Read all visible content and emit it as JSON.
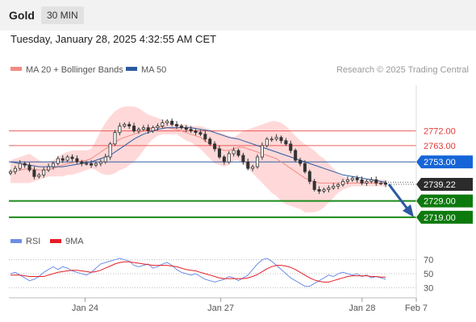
{
  "header": {
    "title": "Gold",
    "timeframe": "30 MIN"
  },
  "timestamp": "Tuesday, January 28, 2025 4:32:55 AM CET",
  "legend": {
    "items": [
      {
        "label": "MA 20 + Bollinger Bands",
        "color": "#f28b82"
      },
      {
        "label": "MA 50",
        "color": "#2c5aa0"
      }
    ],
    "credit": "Research © 2025 Trading Central"
  },
  "rsi_legend": {
    "items": [
      {
        "label": "RSI",
        "color": "#6c8ee6"
      },
      {
        "label": "9MA",
        "color": "#e41e26"
      }
    ]
  },
  "colors": {
    "bullish": "#333333",
    "bearish": "#333333",
    "band_fill": "#ffd9d9",
    "resistance": "#e53935",
    "pivot": "#2c5aa0",
    "support": "#1b8a1b",
    "last": "#333333"
  },
  "chart_data": [
    {
      "type": "line",
      "title": "",
      "x_ticks": [
        {
          "label": "Jan 24",
          "pos": 0.187
        },
        {
          "label": "Jan 27",
          "pos": 0.52
        },
        {
          "label": "Jan 28",
          "pos": 0.867
        },
        {
          "label": "Feb 7",
          "pos": 1.0
        }
      ],
      "ylim": [
        2713,
        2800
      ],
      "levels": [
        {
          "value": 2772.0,
          "label": "2772.00",
          "kind": "resistance"
        },
        {
          "value": 2763.0,
          "label": "2763.00",
          "kind": "resistance"
        },
        {
          "value": 2753.0,
          "label": "2753.00",
          "kind": "pivot"
        },
        {
          "value": 2739.22,
          "label": "2739.22",
          "kind": "last"
        },
        {
          "value": 2729.0,
          "label": "2729.00",
          "kind": "support"
        },
        {
          "value": 2719.0,
          "label": "2719.00",
          "kind": "support"
        }
      ],
      "forecast_arrow": {
        "from": 2739.22,
        "to": 2719.0
      },
      "series": [
        {
          "name": "Gold",
          "values": [
            2747,
            2749,
            2752,
            2751,
            2748,
            2744,
            2745,
            2748,
            2750,
            2752,
            2755,
            2754,
            2756,
            2755,
            2753,
            2752,
            2752,
            2751,
            2752,
            2753,
            2756,
            2764,
            2771,
            2775,
            2776,
            2775,
            2772,
            2773,
            2774,
            2772,
            2774,
            2775,
            2777,
            2778,
            2776,
            2775,
            2774,
            2773,
            2772,
            2771,
            2770,
            2767,
            2764,
            2761,
            2756,
            2753,
            2758,
            2760,
            2757,
            2753,
            2749,
            2750,
            2756,
            2763,
            2767,
            2767,
            2768,
            2766,
            2764,
            2760,
            2754,
            2752,
            2747,
            2741,
            2736,
            2735,
            2736,
            2737,
            2738,
            2739,
            2741,
            2742,
            2743,
            2742,
            2740,
            2741,
            2742,
            2740,
            2740,
            2739.22
          ]
        },
        {
          "name": "MA 20",
          "values": [
            2747,
            2747.5,
            2748,
            2748.5,
            2749,
            2748.5,
            2748,
            2748,
            2748.5,
            2749,
            2750,
            2751,
            2752,
            2752.5,
            2753,
            2753.5,
            2754,
            2755,
            2757,
            2759,
            2761,
            2763,
            2765,
            2767,
            2768,
            2769,
            2770,
            2771,
            2772,
            2773,
            2774,
            2774.5,
            2774.5,
            2774,
            2773.5,
            2773,
            2772,
            2771,
            2770,
            2769,
            2768,
            2766,
            2764,
            2762,
            2761,
            2760,
            2760,
            2761,
            2762,
            2762,
            2761,
            2760,
            2759,
            2758,
            2757,
            2756,
            2755,
            2753,
            2751,
            2749,
            2747,
            2745,
            2743,
            2742,
            2741,
            2740,
            2740,
            2740,
            2740,
            2740,
            2740,
            2740,
            2740,
            2740,
            2740,
            2740,
            2740,
            2740,
            2740,
            2740
          ]
        },
        {
          "name": "Upper band",
          "values": [
            2754,
            2755,
            2756,
            2757,
            2758,
            2756,
            2754,
            2753,
            2753,
            2754,
            2756,
            2758,
            2759,
            2760,
            2760,
            2760,
            2760,
            2761,
            2766,
            2772,
            2777,
            2781,
            2784,
            2786,
            2787,
            2787,
            2787,
            2786,
            2784,
            2782,
            2781,
            2780,
            2779,
            2778,
            2777,
            2776,
            2776,
            2776,
            2775,
            2775,
            2775,
            2774,
            2773,
            2772,
            2771,
            2770,
            2769,
            2768,
            2770,
            2772,
            2773,
            2774,
            2775,
            2776,
            2777,
            2778,
            2778,
            2777,
            2775,
            2772,
            2769,
            2766,
            2764,
            2762,
            2760,
            2757,
            2755,
            2752,
            2749,
            2746,
            2744,
            2743,
            2742,
            2742,
            2742,
            2742,
            2742,
            2742,
            2742,
            2742
          ]
        },
        {
          "name": "Lower band",
          "values": [
            2740,
            2740,
            2740,
            2740,
            2740,
            2741,
            2742,
            2743,
            2744,
            2744,
            2744,
            2744,
            2745,
            2745,
            2746,
            2747,
            2748,
            2749,
            2748,
            2746,
            2745,
            2745,
            2746,
            2748,
            2749,
            2751,
            2753,
            2756,
            2760,
            2764,
            2767,
            2769,
            2770,
            2770,
            2770,
            2770,
            2768,
            2766,
            2765,
            2763,
            2761,
            2758,
            2755,
            2752,
            2751,
            2750,
            2751,
            2754,
            2754,
            2752,
            2749,
            2746,
            2743,
            2740,
            2737,
            2734,
            2732,
            2729,
            2727,
            2726,
            2725,
            2724,
            2722,
            2722,
            2722,
            2723,
            2725,
            2728,
            2731,
            2734,
            2736,
            2737,
            2738,
            2738,
            2738,
            2738,
            2738,
            2738,
            2738,
            2738
          ]
        },
        {
          "name": "MA 50",
          "values": [
            2753,
            2752.5,
            2752,
            2751.5,
            2751,
            2750.5,
            2750,
            2750,
            2750,
            2750,
            2750,
            2750,
            2750.5,
            2751,
            2751.5,
            2752,
            2752.5,
            2753,
            2754,
            2755,
            2756,
            2757,
            2759,
            2761,
            2763,
            2765,
            2767,
            2768.5,
            2770,
            2771,
            2772,
            2773,
            2773.5,
            2774,
            2774,
            2774,
            2774,
            2774,
            2774,
            2773.5,
            2773,
            2772.5,
            2772,
            2771,
            2770,
            2769,
            2768,
            2767.5,
            2767,
            2766,
            2765,
            2764,
            2763,
            2762,
            2761,
            2760,
            2759,
            2758,
            2757,
            2756,
            2755,
            2754,
            2753,
            2752,
            2751,
            2750,
            2749,
            2748,
            2747,
            2746,
            2745,
            2744.5,
            2744,
            2743.5,
            2743,
            2742.5,
            2742,
            2741.5,
            2741,
            2740.5
          ]
        }
      ]
    },
    {
      "type": "line",
      "title": "",
      "ylim": [
        20,
        80
      ],
      "y_ticks": [
        70,
        50,
        30
      ],
      "series": [
        {
          "name": "RSI",
          "values": [
            50,
            52,
            48,
            44,
            40,
            42,
            46,
            52,
            56,
            60,
            56,
            60,
            58,
            54,
            52,
            50,
            48,
            52,
            58,
            64,
            66,
            68,
            70,
            72,
            70,
            68,
            62,
            60,
            62,
            64,
            58,
            60,
            64,
            66,
            62,
            56,
            52,
            50,
            48,
            50,
            46,
            42,
            40,
            38,
            40,
            42,
            46,
            44,
            40,
            44,
            48,
            56,
            64,
            70,
            72,
            68,
            62,
            56,
            50,
            44,
            40,
            36,
            32,
            32,
            36,
            40,
            44,
            48,
            46,
            50,
            52,
            50,
            48,
            50,
            46,
            48,
            44,
            46,
            44,
            42
          ]
        },
        {
          "name": "9MA",
          "values": [
            48,
            48,
            48,
            47,
            46,
            46,
            46,
            46,
            48,
            50,
            52,
            53,
            54,
            55,
            55,
            54,
            53,
            52,
            53,
            55,
            58,
            61,
            64,
            66,
            67,
            67,
            66,
            65,
            64,
            63,
            62,
            62,
            62,
            62,
            61,
            60,
            58,
            56,
            55,
            54,
            52,
            50,
            48,
            46,
            44,
            43,
            43,
            43,
            43,
            43,
            44,
            46,
            49,
            53,
            57,
            60,
            62,
            62,
            61,
            59,
            56,
            52,
            48,
            44,
            41,
            39,
            38,
            38,
            40,
            42,
            44,
            46,
            47,
            47,
            47,
            47,
            46,
            46,
            45,
            45
          ]
        }
      ]
    }
  ]
}
